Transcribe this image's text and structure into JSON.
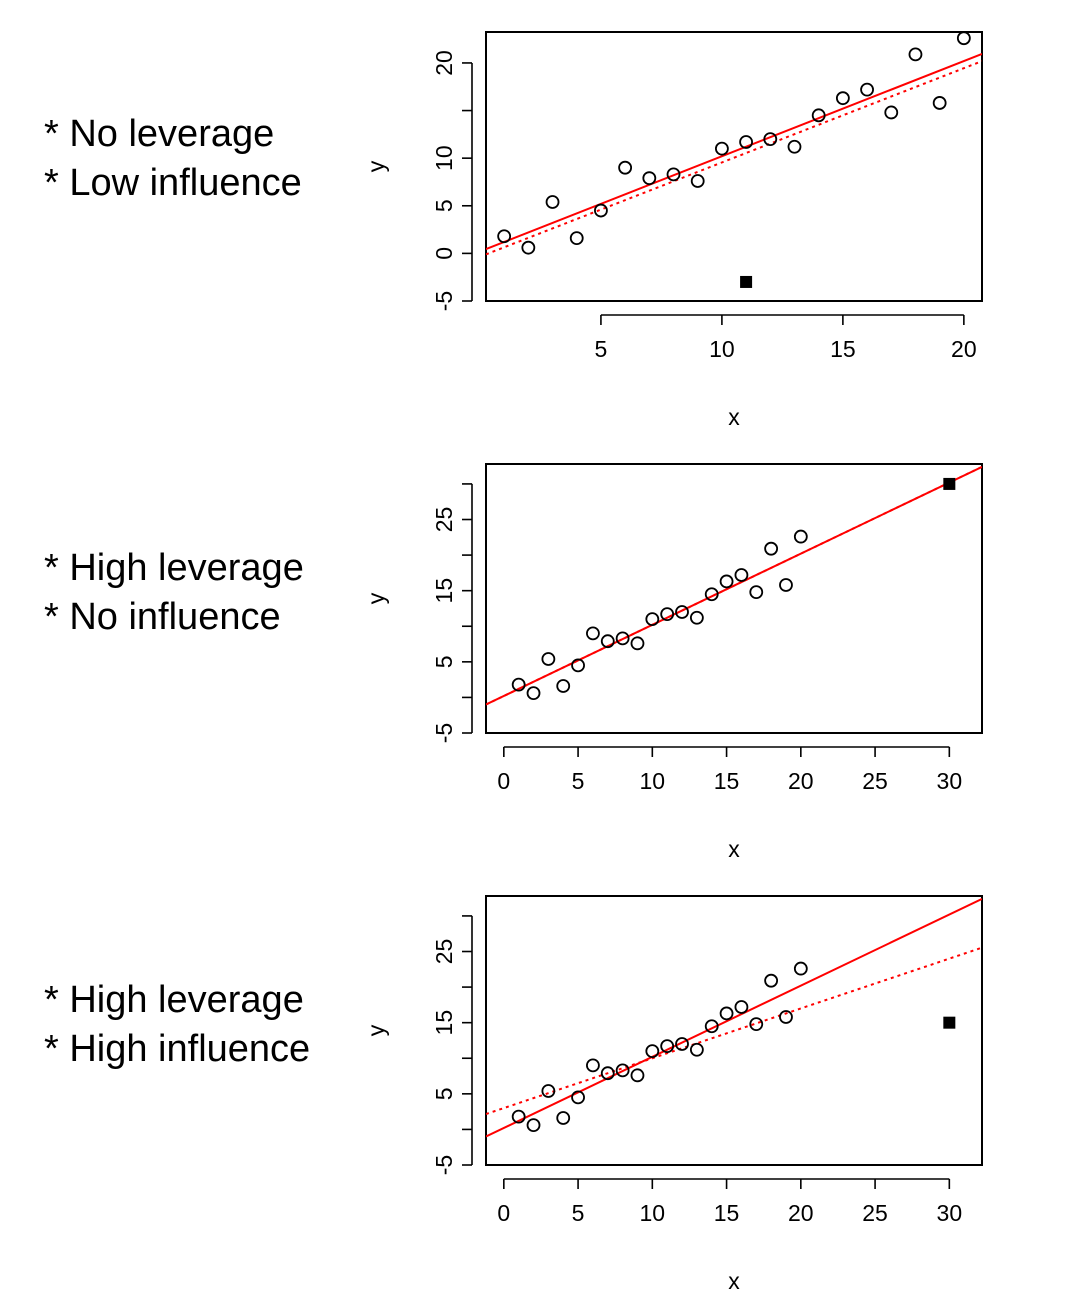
{
  "panels": [
    {
      "annotation": [
        "* No leverage",
        "* Low influence"
      ],
      "chart": 0
    },
    {
      "annotation": [
        "* High leverage",
        "* No influence"
      ],
      "chart": 1
    },
    {
      "annotation": [
        "* High leverage",
        "* High influence"
      ],
      "chart": 2
    }
  ],
  "colors": {
    "fit_line": "#ff0000",
    "points": "#000000",
    "axes": "#000000"
  },
  "chart_data": [
    {
      "type": "scatter",
      "xlabel": "x",
      "ylabel": "y",
      "xlim": [
        0.25,
        20.75
      ],
      "ylim": [
        -5,
        23.25
      ],
      "xticks": [
        5,
        10,
        15,
        20
      ],
      "yticks": [
        -5,
        0,
        5,
        10,
        15,
        20
      ],
      "ytick_labels": [
        "-5",
        "0",
        "5",
        "10",
        "",
        "20"
      ],
      "grid": false,
      "series": [
        {
          "marker": "open-circle",
          "x": [
            1,
            2,
            3,
            4,
            5,
            6,
            7,
            8,
            9,
            10,
            11,
            12,
            13,
            14,
            15,
            16,
            17,
            18,
            19,
            20
          ],
          "y": [
            1.8,
            0.6,
            5.4,
            1.6,
            4.5,
            9.0,
            7.9,
            8.3,
            7.6,
            11.0,
            11.7,
            12.0,
            11.2,
            14.5,
            16.3,
            17.2,
            14.8,
            20.9,
            15.8,
            22.6
          ]
        },
        {
          "marker": "filled-square",
          "x": [
            11
          ],
          "y": [
            -3
          ]
        }
      ],
      "lines": [
        {
          "style": "solid",
          "intercept": 0.2,
          "slope": 1.0
        },
        {
          "style": "dotted",
          "intercept": -0.35,
          "slope": 0.99
        }
      ]
    },
    {
      "type": "scatter",
      "xlabel": "x",
      "ylabel": "y",
      "xlim": [
        -1.2,
        32.2
      ],
      "ylim": [
        -5,
        32.8
      ],
      "xticks": [
        0,
        5,
        10,
        15,
        20,
        25,
        30
      ],
      "yticks": [
        -5,
        0,
        5,
        10,
        15,
        20,
        25,
        30
      ],
      "ytick_labels": [
        "-5",
        "",
        "5",
        "",
        "15",
        "",
        "25",
        ""
      ],
      "grid": false,
      "series": [
        {
          "marker": "open-circle",
          "x": [
            1,
            2,
            3,
            4,
            5,
            6,
            7,
            8,
            9,
            10,
            11,
            12,
            13,
            14,
            15,
            16,
            17,
            18,
            19,
            20
          ],
          "y": [
            1.8,
            0.6,
            5.4,
            1.6,
            4.5,
            9.0,
            7.9,
            8.3,
            7.6,
            11.0,
            11.7,
            12.0,
            11.2,
            14.5,
            16.3,
            17.2,
            14.8,
            20.9,
            15.8,
            22.6
          ]
        },
        {
          "marker": "filled-square",
          "x": [
            30
          ],
          "y": [
            30
          ]
        }
      ],
      "lines": [
        {
          "style": "solid",
          "intercept": 0.2,
          "slope": 1.0
        },
        {
          "style": "dotted",
          "intercept": 0.2,
          "slope": 1.0
        }
      ]
    },
    {
      "type": "scatter",
      "xlabel": "x",
      "ylabel": "y",
      "xlim": [
        -1.2,
        32.2
      ],
      "ylim": [
        -5,
        32.8
      ],
      "xticks": [
        0,
        5,
        10,
        15,
        20,
        25,
        30
      ],
      "yticks": [
        -5,
        0,
        5,
        10,
        15,
        20,
        25,
        30
      ],
      "ytick_labels": [
        "-5",
        "",
        "5",
        "",
        "15",
        "",
        "25",
        ""
      ],
      "grid": false,
      "series": [
        {
          "marker": "open-circle",
          "x": [
            1,
            2,
            3,
            4,
            5,
            6,
            7,
            8,
            9,
            10,
            11,
            12,
            13,
            14,
            15,
            16,
            17,
            18,
            19,
            20
          ],
          "y": [
            1.8,
            0.6,
            5.4,
            1.6,
            4.5,
            9.0,
            7.9,
            8.3,
            7.6,
            11.0,
            11.7,
            12.0,
            11.2,
            14.5,
            16.3,
            17.2,
            14.8,
            20.9,
            15.8,
            22.6
          ]
        },
        {
          "marker": "filled-square",
          "x": [
            30
          ],
          "y": [
            15
          ]
        }
      ],
      "lines": [
        {
          "style": "solid",
          "intercept": 0.2,
          "slope": 1.0
        },
        {
          "style": "dotted",
          "intercept": 3.0,
          "slope": 0.7
        }
      ]
    }
  ]
}
